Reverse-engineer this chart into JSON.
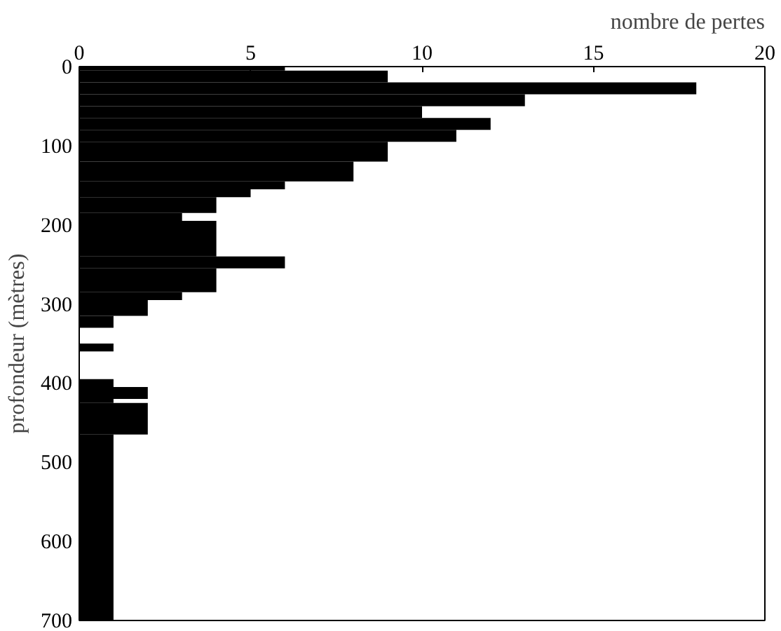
{
  "chart_data": {
    "type": "histogram",
    "orientation": "horizontal",
    "xlabel": "nombre de pertes",
    "ylabel": "profondeur (mètres)",
    "bins": [
      0,
      5,
      20,
      35,
      50,
      65,
      80,
      95,
      120,
      145,
      155,
      165,
      185,
      195,
      240,
      255,
      285,
      295,
      315,
      330,
      350,
      360,
      395,
      405,
      420,
      425,
      465,
      700
    ],
    "values": [
      6,
      9,
      18,
      13,
      10,
      12,
      11,
      9,
      8,
      6,
      5,
      4,
      3,
      4,
      6,
      4,
      3,
      2,
      1,
      0,
      1,
      0,
      1,
      2,
      1,
      2,
      1
    ],
    "color": "#000000",
    "xlim": [
      0,
      20
    ],
    "xticks": [
      0,
      5,
      10,
      15,
      20
    ],
    "ylim": [
      700,
      0
    ],
    "yticks": [
      0,
      100,
      200,
      300,
      400,
      500,
      600,
      700
    ],
    "grid": false
  }
}
